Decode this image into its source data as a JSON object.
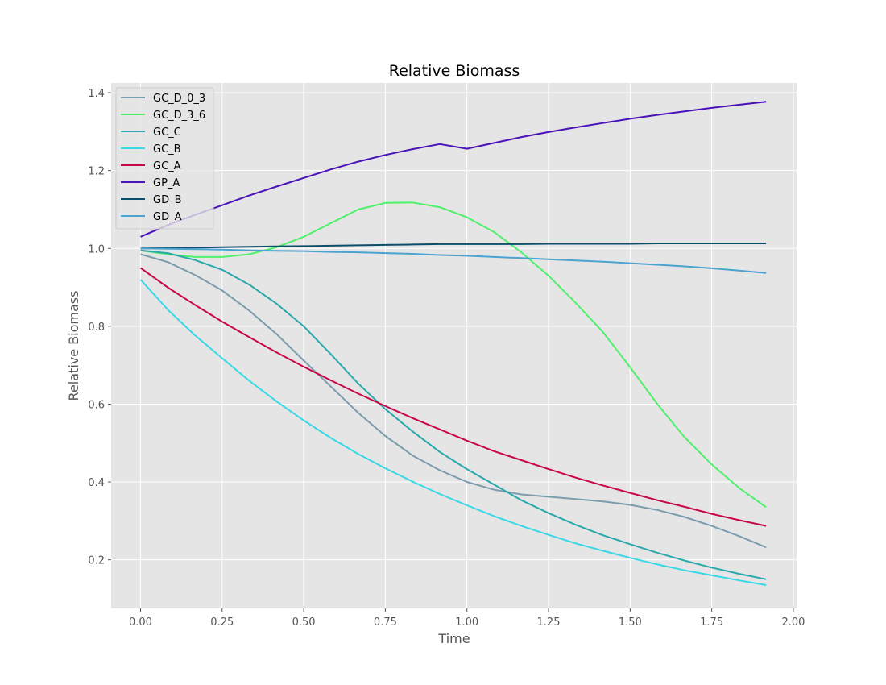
{
  "chart_data": {
    "type": "line",
    "title": "Relative Biomass",
    "xlabel": "Time",
    "ylabel": "Relative Biomass",
    "xlim": [
      -0.09,
      2.01
    ],
    "ylim": [
      0.075,
      1.425
    ],
    "xticks": [
      "0.00",
      "0.25",
      "0.50",
      "0.75",
      "1.00",
      "1.25",
      "1.50",
      "1.75",
      "2.00"
    ],
    "yticks": [
      "0.2",
      "0.4",
      "0.6",
      "0.8",
      "1.0",
      "1.2",
      "1.4"
    ],
    "grid": true,
    "legend_position": "top-left",
    "x": [
      0,
      0.0833,
      0.1667,
      0.25,
      0.3333,
      0.4167,
      0.5,
      0.5833,
      0.6667,
      0.75,
      0.8333,
      0.9167,
      1.0,
      1.0833,
      1.1667,
      1.25,
      1.3333,
      1.4167,
      1.5,
      1.5833,
      1.6667,
      1.75,
      1.8333,
      1.9167
    ],
    "series": [
      {
        "name": "GC_D_0_3",
        "color": "#7b9cad",
        "values": [
          0.985,
          0.965,
          0.932,
          0.892,
          0.84,
          0.78,
          0.712,
          0.645,
          0.578,
          0.518,
          0.468,
          0.43,
          0.4,
          0.38,
          0.368,
          0.362,
          0.356,
          0.35,
          0.341,
          0.328,
          0.31,
          0.287,
          0.261,
          0.232
        ]
      },
      {
        "name": "GC_D_3_6",
        "color": "#4ff06b",
        "values": [
          0.995,
          0.985,
          0.978,
          0.978,
          0.985,
          1.003,
          1.03,
          1.065,
          1.1,
          1.117,
          1.118,
          1.106,
          1.08,
          1.042,
          0.99,
          0.93,
          0.86,
          0.785,
          0.695,
          0.6,
          0.515,
          0.445,
          0.385,
          0.335
        ]
      },
      {
        "name": "GC_C",
        "color": "#2aa8ab",
        "values": [
          0.995,
          0.988,
          0.97,
          0.945,
          0.907,
          0.858,
          0.8,
          0.728,
          0.653,
          0.587,
          0.53,
          0.477,
          0.433,
          0.393,
          0.353,
          0.32,
          0.29,
          0.263,
          0.24,
          0.218,
          0.198,
          0.18,
          0.164,
          0.15
        ]
      },
      {
        "name": "GC_B",
        "color": "#38d8e6",
        "values": [
          0.92,
          0.843,
          0.777,
          0.718,
          0.66,
          0.607,
          0.558,
          0.513,
          0.472,
          0.435,
          0.401,
          0.369,
          0.34,
          0.312,
          0.287,
          0.264,
          0.242,
          0.223,
          0.205,
          0.188,
          0.173,
          0.16,
          0.147,
          0.135
        ]
      },
      {
        "name": "GC_A",
        "color": "#c8064a",
        "values": [
          0.95,
          0.9,
          0.855,
          0.812,
          0.772,
          0.733,
          0.696,
          0.661,
          0.627,
          0.595,
          0.564,
          0.535,
          0.506,
          0.479,
          0.456,
          0.433,
          0.411,
          0.391,
          0.372,
          0.353,
          0.336,
          0.318,
          0.302,
          0.287
        ]
      },
      {
        "name": "GP_A",
        "color": "#4a12b8",
        "values": [
          1.03,
          1.06,
          1.086,
          1.111,
          1.136,
          1.159,
          1.181,
          1.203,
          1.223,
          1.24,
          1.255,
          1.268,
          1.256,
          1.271,
          1.286,
          1.299,
          1.311,
          1.322,
          1.333,
          1.343,
          1.352,
          1.361,
          1.369,
          1.377
        ]
      },
      {
        "name": "GD_B",
        "color": "#0b4f6c",
        "values": [
          1.0,
          1.001,
          1.002,
          1.003,
          1.004,
          1.005,
          1.006,
          1.007,
          1.008,
          1.009,
          1.01,
          1.011,
          1.011,
          1.011,
          1.011,
          1.012,
          1.012,
          1.012,
          1.012,
          1.013,
          1.013,
          1.013,
          1.013,
          1.013
        ]
      },
      {
        "name": "GD_A",
        "color": "#4aa3d0",
        "values": [
          1.0,
          0.999,
          0.998,
          0.997,
          0.995,
          0.994,
          0.993,
          0.991,
          0.99,
          0.988,
          0.986,
          0.983,
          0.981,
          0.978,
          0.975,
          0.972,
          0.969,
          0.966,
          0.962,
          0.958,
          0.954,
          0.949,
          0.943,
          0.937
        ]
      }
    ]
  }
}
